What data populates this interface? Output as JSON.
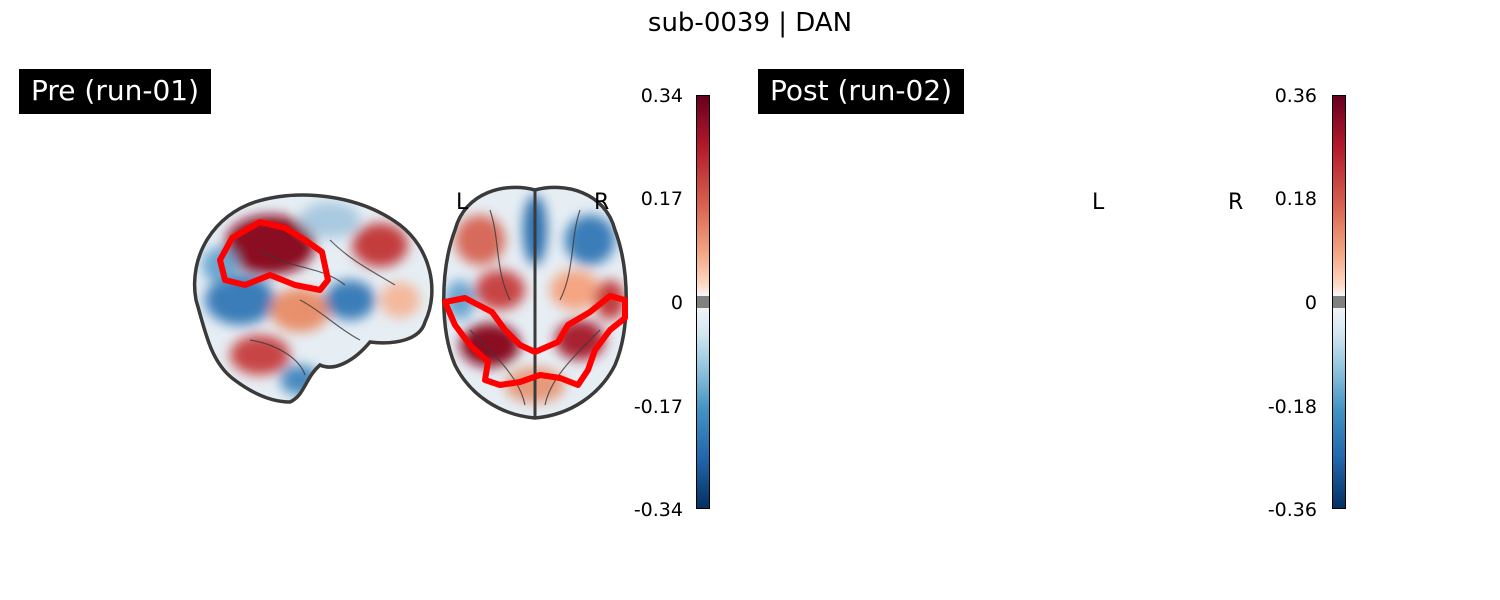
{
  "figure": {
    "title": "sub-0039 | DAN"
  },
  "panels": [
    {
      "label": "Pre (run-01)",
      "colorbar": {
        "ticks": [
          "0.34",
          "0.17",
          "0",
          "-0.17",
          "-0.34"
        ],
        "vmin": -0.34,
        "vmax": 0.34
      },
      "hemi_left": "L",
      "hemi_right": "R"
    },
    {
      "label": "Post (run-02)",
      "colorbar": {
        "ticks": [
          "0.36",
          "0.18",
          "0",
          "-0.18",
          "-0.36"
        ],
        "vmin": -0.36,
        "vmax": 0.36
      },
      "hemi_left": "L",
      "hemi_right": "R"
    }
  ],
  "colors": {
    "cmap_top": "#67001f",
    "cmap_mid": "#f7f7f7",
    "cmap_bottom": "#053061",
    "threshold_gray": "#808080",
    "outline": "#ff0000",
    "brain_contour": "#3a3a3a"
  }
}
